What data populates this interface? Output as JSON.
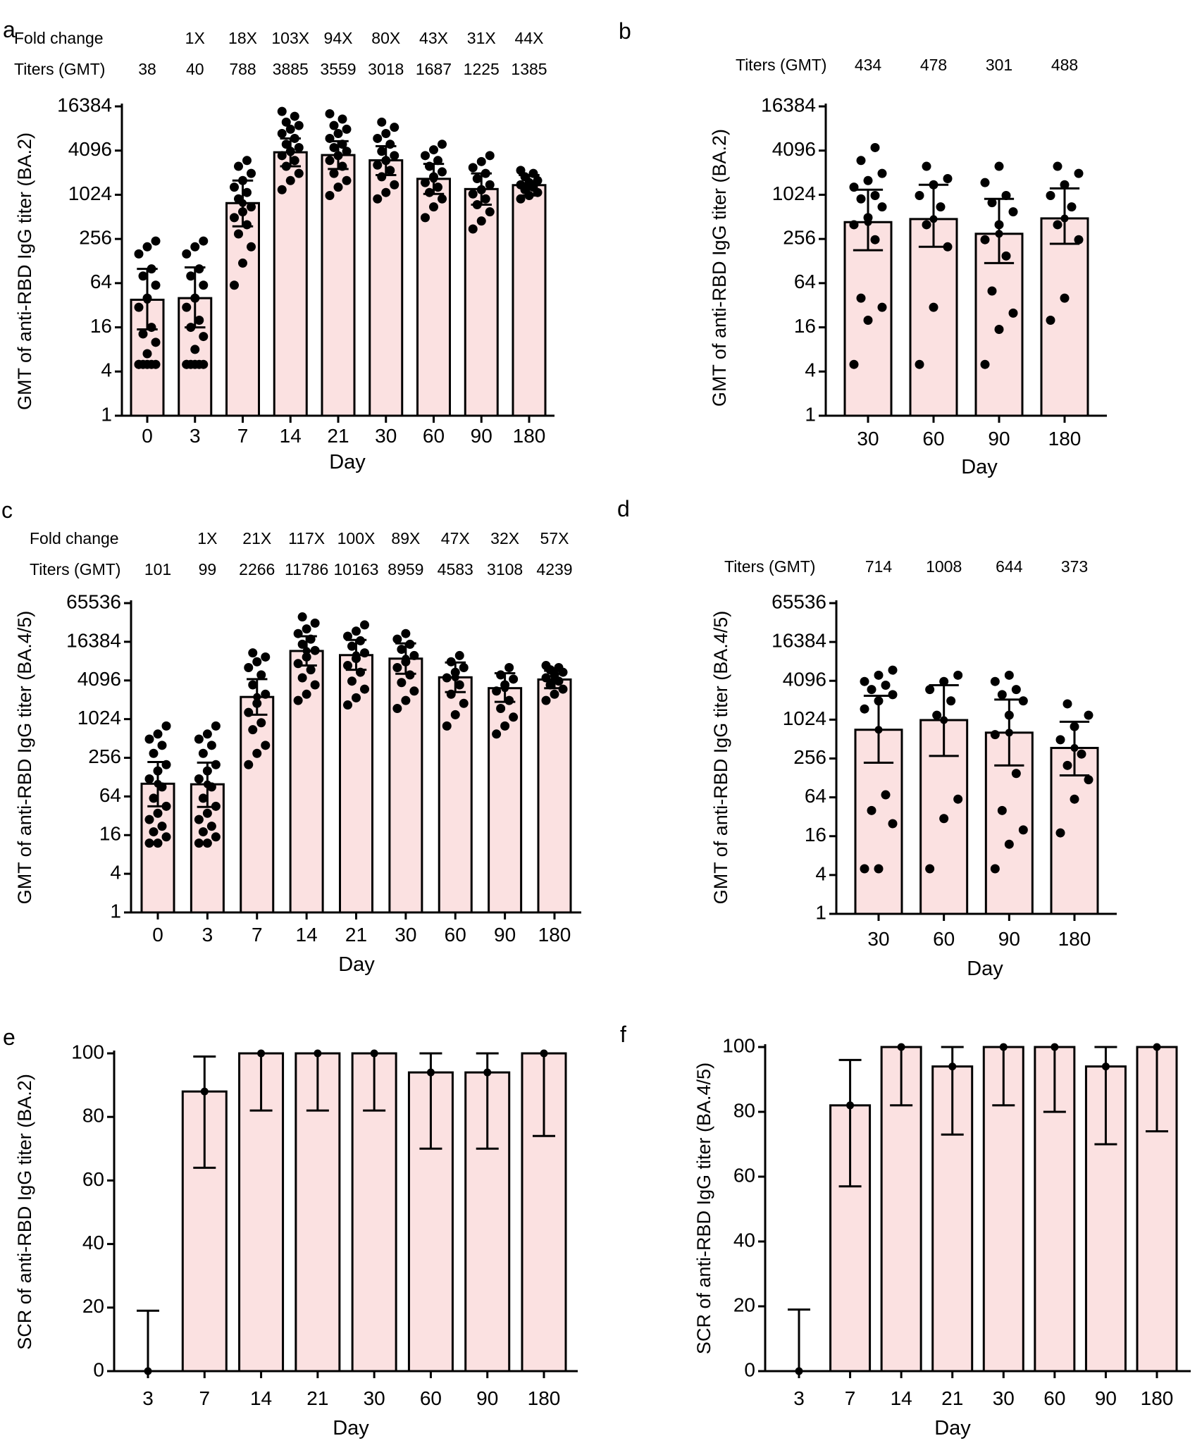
{
  "chart_data": [
    {
      "panel": "a",
      "type": "bar",
      "y_scale": "log2",
      "ylabel": "GMT of anti-RBD IgG titer (BA.2)",
      "xlabel": "Day",
      "categories": [
        "0",
        "3",
        "7",
        "14",
        "21",
        "30",
        "60",
        "90",
        "180"
      ],
      "values": [
        38,
        40,
        788,
        3885,
        3559,
        3018,
        1687,
        1225,
        1385
      ],
      "error_low": [
        15,
        16,
        380,
        2500,
        2300,
        1900,
        1050,
        750,
        1000
      ],
      "error_high": [
        100,
        105,
        1600,
        6000,
        5500,
        4700,
        2700,
        2000,
        1900
      ],
      "points": [
        [
          5,
          5,
          5,
          5,
          5,
          5,
          7,
          10,
          13,
          16,
          30,
          40,
          60,
          80,
          100,
          160,
          200,
          240
        ],
        [
          5,
          5,
          5,
          5,
          5,
          5,
          8,
          12,
          16,
          20,
          30,
          40,
          60,
          80,
          100,
          160,
          200,
          240
        ],
        [
          60,
          120,
          200,
          300,
          400,
          500,
          600,
          700,
          900,
          1100,
          1300,
          1600,
          2000,
          2500,
          3000
        ],
        [
          1200,
          1600,
          2000,
          2500,
          3000,
          3500,
          4000,
          4500,
          5000,
          6000,
          7000,
          8000,
          9000,
          10000,
          12000,
          14000
        ],
        [
          1000,
          1300,
          1600,
          2000,
          2500,
          3000,
          3500,
          4000,
          4500,
          5000,
          6000,
          7000,
          8000,
          9000,
          11000,
          13000
        ],
        [
          900,
          1100,
          1400,
          1800,
          2200,
          2600,
          3000,
          3500,
          4000,
          5000,
          6000,
          7000,
          8500,
          10000
        ],
        [
          500,
          700,
          900,
          1100,
          1300,
          1500,
          1800,
          2100,
          2500,
          3000,
          3500,
          4200,
          5000
        ],
        [
          350,
          450,
          600,
          750,
          900,
          1050,
          1200,
          1400,
          1700,
          2000,
          2400,
          2900,
          3500
        ],
        [
          900,
          1000,
          1100,
          1200,
          1300,
          1400,
          1500,
          1600,
          1800,
          2000,
          2200
        ]
      ],
      "header_rows": [
        {
          "label": "Fold change",
          "values": [
            "",
            "1X",
            "18X",
            "103X",
            "94X",
            "80X",
            "43X",
            "31X",
            "44X"
          ]
        },
        {
          "label": "Titers (GMT)",
          "values": [
            "38",
            "40",
            "788",
            "3885",
            "3559",
            "3018",
            "1687",
            "1225",
            "1385"
          ]
        }
      ],
      "yticks": [
        "1",
        "4",
        "16",
        "64",
        "256",
        "1024",
        "4096",
        "16384"
      ],
      "ylim": [
        1,
        16384
      ],
      "bar_color": "#fbe1e1"
    },
    {
      "panel": "b",
      "type": "bar",
      "y_scale": "log2",
      "ylabel": "GMT of anti-RBD IgG titer (BA.2)",
      "xlabel": "Day",
      "categories": [
        "30",
        "60",
        "90",
        "180"
      ],
      "values": [
        434,
        478,
        301,
        488
      ],
      "error_low": [
        180,
        200,
        120,
        220
      ],
      "error_high": [
        1200,
        1400,
        900,
        1250
      ],
      "points": [
        [
          5,
          20,
          30,
          40,
          250,
          400,
          500,
          700,
          900,
          1000,
          1300,
          1600,
          2000,
          3000,
          4500
        ],
        [
          5,
          30,
          200,
          400,
          700,
          1000,
          1400,
          1700,
          2500
        ],
        [
          5,
          15,
          25,
          50,
          150,
          250,
          400,
          600,
          800,
          1000,
          1500,
          2500
        ],
        [
          20,
          40,
          250,
          400,
          700,
          1000,
          1400,
          2000,
          2500
        ]
      ],
      "header_rows": [
        {
          "label": "Titers (GMT)",
          "values": [
            "434",
            "478",
            "301",
            "488"
          ]
        }
      ],
      "yticks": [
        "1",
        "4",
        "16",
        "64",
        "256",
        "1024",
        "4096",
        "16384"
      ],
      "ylim": [
        1,
        16384
      ],
      "bar_color": "#fbe1e1"
    },
    {
      "panel": "c",
      "type": "bar",
      "y_scale": "log2",
      "ylabel": "GMT of anti-RBD IgG titer (BA.4/5)",
      "xlabel": "Day",
      "categories": [
        "0",
        "3",
        "7",
        "14",
        "21",
        "30",
        "60",
        "90",
        "180"
      ],
      "values": [
        101,
        99,
        2266,
        11786,
        10163,
        8959,
        4583,
        3108,
        4239
      ],
      "error_low": [
        45,
        44,
        1200,
        7000,
        6000,
        5200,
        2700,
        1900,
        3100
      ],
      "error_high": [
        220,
        215,
        4300,
        20000,
        17500,
        15500,
        7800,
        5300,
        5800
      ],
      "points": [
        [
          12,
          12,
          15,
          18,
          22,
          28,
          35,
          45,
          60,
          90,
          120,
          160,
          200,
          300,
          400,
          500,
          600,
          800
        ],
        [
          12,
          12,
          15,
          18,
          22,
          28,
          35,
          45,
          60,
          90,
          120,
          160,
          200,
          300,
          400,
          500,
          600,
          800
        ],
        [
          200,
          300,
          400,
          700,
          900,
          1300,
          1800,
          2500,
          3500,
          5000,
          6500,
          8000,
          9500,
          11000
        ],
        [
          2000,
          2500,
          3500,
          4500,
          6000,
          7500,
          9500,
          12000,
          15000,
          18000,
          22000,
          26000,
          32000,
          40000
        ],
        [
          1700,
          2200,
          3000,
          4000,
          5500,
          7000,
          9000,
          11000,
          14000,
          17000,
          20000,
          24000,
          30000
        ],
        [
          1500,
          2000,
          2800,
          3800,
          5000,
          6500,
          8000,
          10000,
          12500,
          15000,
          18000,
          22000
        ],
        [
          800,
          1200,
          1800,
          2500,
          3500,
          4500,
          5500,
          6500,
          8000,
          10000
        ],
        [
          600,
          800,
          1100,
          1500,
          2000,
          2800,
          3500,
          4300,
          5000,
          6500
        ],
        [
          2000,
          2500,
          3000,
          3500,
          4000,
          4500,
          5000,
          5500,
          6000,
          6500,
          7000
        ]
      ],
      "header_rows": [
        {
          "label": "Fold change",
          "values": [
            "",
            "1X",
            "21X",
            "117X",
            "100X",
            "89X",
            "47X",
            "32X",
            "57X"
          ]
        },
        {
          "label": "Titers (GMT)",
          "values": [
            "101",
            "99",
            "2266",
            "11786",
            "10163",
            "8959",
            "4583",
            "3108",
            "4239"
          ]
        }
      ],
      "yticks": [
        "1",
        "4",
        "16",
        "64",
        "256",
        "1024",
        "4096",
        "16384",
        "65536"
      ],
      "ylim": [
        1,
        65536
      ],
      "bar_color": "#fbe1e1"
    },
    {
      "panel": "d",
      "type": "bar",
      "y_scale": "log2",
      "ylabel": "GMT of anti-RBD IgG titer (BA.4/5)",
      "xlabel": "Day",
      "categories": [
        "30",
        "60",
        "90",
        "180"
      ],
      "values": [
        714,
        1008,
        644,
        373
      ],
      "error_low": [
        220,
        280,
        200,
        140
      ],
      "error_high": [
        2400,
        3500,
        2100,
        950
      ],
      "points": [
        [
          5,
          5,
          25,
          40,
          70,
          1500,
          2000,
          2500,
          3000,
          3500,
          4000,
          5000,
          6000
        ],
        [
          5,
          30,
          60,
          1200,
          2000,
          3000,
          4000,
          5000
        ],
        [
          5,
          12,
          20,
          40,
          150,
          600,
          1200,
          2000,
          2500,
          3000,
          4000,
          5000
        ],
        [
          18,
          60,
          120,
          200,
          300,
          500,
          800,
          1200,
          1800
        ]
      ],
      "header_rows": [
        {
          "label": "Titers (GMT)",
          "values": [
            "714",
            "1008",
            "644",
            "373"
          ]
        }
      ],
      "yticks": [
        "1",
        "4",
        "16",
        "64",
        "256",
        "1024",
        "4096",
        "16384",
        "65536"
      ],
      "ylim": [
        1,
        65536
      ],
      "bar_color": "#fbe1e1"
    },
    {
      "panel": "e",
      "type": "bar",
      "y_scale": "linear",
      "ylabel": "SCR of anti-RBD IgG titer (BA.2)",
      "xlabel": "Day",
      "categories": [
        "3",
        "7",
        "14",
        "21",
        "30",
        "60",
        "90",
        "180"
      ],
      "values": [
        0,
        88,
        100,
        100,
        100,
        94,
        94,
        100
      ],
      "error_low": [
        0,
        64,
        82,
        82,
        82,
        70,
        70,
        74
      ],
      "error_high": [
        19,
        99,
        100,
        100,
        100,
        100,
        100,
        100
      ],
      "yticks": [
        "0",
        "20",
        "40",
        "60",
        "80",
        "100"
      ],
      "ylim": [
        0,
        100
      ],
      "bar_color": "#fbe1e1"
    },
    {
      "panel": "f",
      "type": "bar",
      "y_scale": "linear",
      "ylabel": "SCR of anti-RBD IgG titer (BA.4/5)",
      "xlabel": "Day",
      "categories": [
        "3",
        "7",
        "14",
        "21",
        "30",
        "60",
        "90",
        "180"
      ],
      "values": [
        0,
        82,
        100,
        94,
        100,
        100,
        94,
        100
      ],
      "error_low": [
        0,
        57,
        82,
        73,
        82,
        80,
        70,
        74
      ],
      "error_high": [
        19,
        96,
        100,
        100,
        100,
        100,
        100,
        100
      ],
      "yticks": [
        "0",
        "20",
        "40",
        "60",
        "80",
        "100"
      ],
      "ylim": [
        0,
        100
      ],
      "bar_color": "#fbe1e1"
    }
  ]
}
